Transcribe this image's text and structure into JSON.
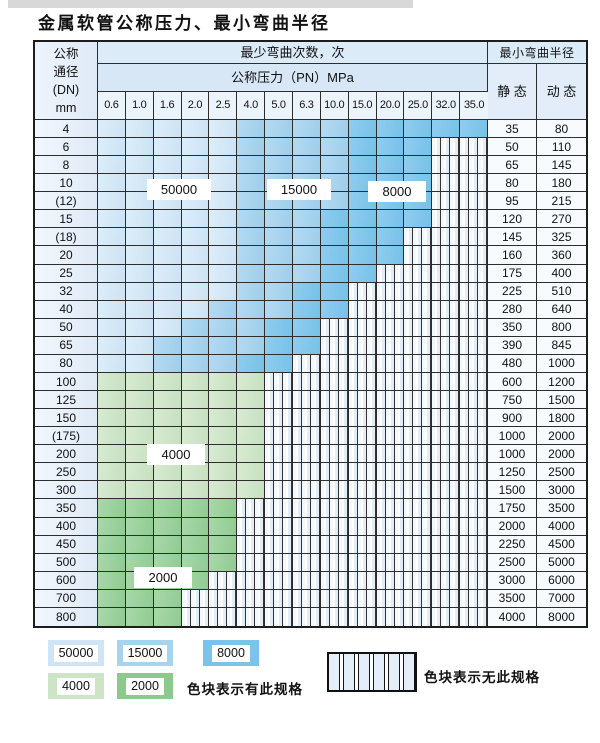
{
  "title": "金属软管公称压力、最小弯曲半径",
  "table": {
    "header": {
      "dn_lines": [
        "公称",
        "通径",
        "(DN)",
        "mm"
      ],
      "bend_times": "最少弯曲次数，次",
      "pressure": "公称压力（PN）MPa",
      "radius": "最小弯曲半径",
      "static": "静 态",
      "dynamic": "动 态",
      "pressures": [
        "0.6",
        "1.0",
        "1.6",
        "2.0",
        "2.5",
        "4.0",
        "5.0",
        "6.3",
        "10.0",
        "15.0",
        "20.0",
        "25.0",
        "32.0",
        "35.0"
      ]
    },
    "zone_legend_note": "zones letters: l=50000, m=15000, d=8000, g=4000, G=2000, n=no-spec-hatched",
    "rows": [
      {
        "dn": "4",
        "zones": "lllllmmmmddddd",
        "static": "35",
        "dynamic": "80"
      },
      {
        "dn": "6",
        "zones": "lllllmmmmdddnn",
        "static": "50",
        "dynamic": "110"
      },
      {
        "dn": "8",
        "zones": "lllllmmmmdddnn",
        "static": "65",
        "dynamic": "145"
      },
      {
        "dn": "10",
        "zones": "lllllmmmmdddnn",
        "static": "80",
        "dynamic": "180"
      },
      {
        "dn": "(12)",
        "zones": "lllllmmmmdddnn",
        "static": "95",
        "dynamic": "215"
      },
      {
        "dn": "15",
        "zones": "lllllmmmddddnn",
        "static": "120",
        "dynamic": "270"
      },
      {
        "dn": "(18)",
        "zones": "lllllmmmdddnnn",
        "static": "145",
        "dynamic": "325"
      },
      {
        "dn": "20",
        "zones": "lllllmmmdddnnn",
        "static": "160",
        "dynamic": "360"
      },
      {
        "dn": "25",
        "zones": "lllllmmmddnnnn",
        "static": "175",
        "dynamic": "400"
      },
      {
        "dn": "32",
        "zones": "lllllmmddnnnnn",
        "static": "225",
        "dynamic": "510"
      },
      {
        "dn": "40",
        "zones": "llllmmmddnnnnn",
        "static": "280",
        "dynamic": "640"
      },
      {
        "dn": "50",
        "zones": "lllmmmddnnnnnn",
        "static": "350",
        "dynamic": "800"
      },
      {
        "dn": "65",
        "zones": "llmmmmddnnnnnn",
        "static": "390",
        "dynamic": "845"
      },
      {
        "dn": "80",
        "zones": "llmmmddnnnnnnn",
        "static": "480",
        "dynamic": "1000"
      },
      {
        "dn": "100",
        "zones": "ggggggnnnnnnnn",
        "static": "600",
        "dynamic": "1200"
      },
      {
        "dn": "125",
        "zones": "ggggggnnnnnnnn",
        "static": "750",
        "dynamic": "1500"
      },
      {
        "dn": "150",
        "zones": "ggggggnnnnnnnn",
        "static": "900",
        "dynamic": "1800"
      },
      {
        "dn": "(175)",
        "zones": "ggggggnnnnnnnn",
        "static": "1000",
        "dynamic": "2000"
      },
      {
        "dn": "200",
        "zones": "ggggggnnnnnnnn",
        "static": "1000",
        "dynamic": "2000"
      },
      {
        "dn": "250",
        "zones": "ggggggnnnnnnnn",
        "static": "1250",
        "dynamic": "2500"
      },
      {
        "dn": "300",
        "zones": "ggggggnnnnnnnn",
        "static": "1500",
        "dynamic": "3000"
      },
      {
        "dn": "350",
        "zones": "GGGGGnnnnnnnnn",
        "static": "1750",
        "dynamic": "3500"
      },
      {
        "dn": "400",
        "zones": "GGGGGnnnnnnnnn",
        "static": "2000",
        "dynamic": "4000"
      },
      {
        "dn": "450",
        "zones": "GGGGGnnnnnnnnn",
        "static": "2250",
        "dynamic": "4500"
      },
      {
        "dn": "500",
        "zones": "GGGGGnnnnnnnnn",
        "static": "2500",
        "dynamic": "5000"
      },
      {
        "dn": "600",
        "zones": "GGGGnnnnnnnnnn",
        "static": "3000",
        "dynamic": "6000"
      },
      {
        "dn": "700",
        "zones": "GGGnnnnnnnnnnn",
        "static": "3500",
        "dynamic": "7000"
      },
      {
        "dn": "800",
        "zones": "GGGnnnnnnnnnnn",
        "static": "4000",
        "dynamic": "8000"
      }
    ],
    "overlays": [
      {
        "text": "50000"
      },
      {
        "text": "15000"
      },
      {
        "text": "8000"
      },
      {
        "text": "4000"
      },
      {
        "text": "2000"
      }
    ]
  },
  "legend": {
    "chips": [
      {
        "label": "50000",
        "color": "#cfe4f5"
      },
      {
        "label": "15000",
        "color": "#a6d3ee"
      },
      {
        "label": "8000",
        "color": "#7cc3e9"
      },
      {
        "label": "4000",
        "color": "#cde4c6"
      },
      {
        "label": "2000",
        "color": "#8cc98c"
      }
    ],
    "has_spec": "色块表示有此规格",
    "no_spec": "色块表示无此规格"
  },
  "colors": {
    "zone_50000": "#d5e8f6",
    "zone_15000": "#a8d4ee",
    "zone_8000": "#82c6ea",
    "zone_4000": "#cfe5c8",
    "zone_2000": "#9dd19d",
    "no_spec_stripe": "#e3edf8",
    "header_bg": "#dcebf8",
    "grid_line": "#2d2d2d"
  }
}
